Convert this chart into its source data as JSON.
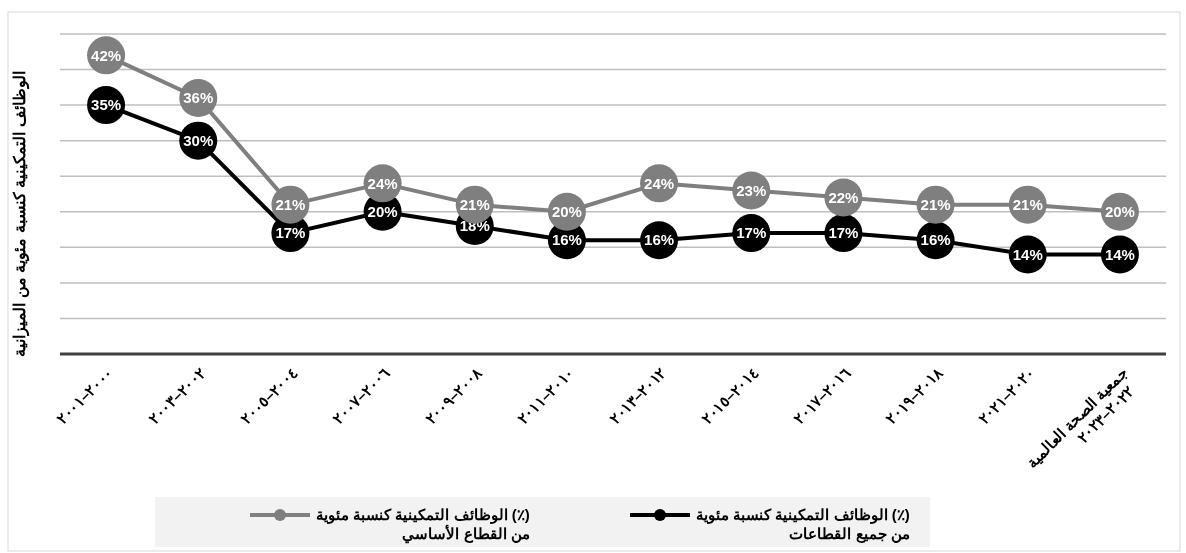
{
  "chart_data": {
    "type": "line",
    "ylabel": "الوظائف التمكينية كنسبة مئوية من الميزانية",
    "categories": [
      "٢٠٠٠–٢٠٠١",
      "٢٠٠٢–٢٠٠٣",
      "٢٠٠٤–٢٠٠٥",
      "٢٠٠٦–٢٠٠٧",
      "٢٠٠٨–٢٠٠٩",
      "٢٠١٠–٢٠١١",
      "٢٠١٢–٢٠١٣",
      "٢٠١٤–٢٠١٥",
      "٢٠١٦–٢٠١٧",
      "٢٠١٨–٢٠١٩",
      "٢٠٢٠–٢٠٢١",
      "جمعية الصحة العالمية ٢٠٢٢–٢٠٢٣"
    ],
    "series": [
      {
        "name": "الوظائف التمكينية كنسبة مئوية (٪) من القطاع الأساسي",
        "color": "#7f7f7f",
        "values": [
          42,
          36,
          21,
          24,
          21,
          20,
          24,
          23,
          22,
          21,
          21,
          20
        ],
        "value_labels": [
          "42%",
          "36%",
          "21%",
          "24%",
          "21%",
          "20%",
          "24%",
          "23%",
          "22%",
          "21%",
          "21%",
          "20%"
        ]
      },
      {
        "name": "الوظائف التمكينية كنسبة مئوية (٪) من جميع القطاعات",
        "color": "#000000",
        "values": [
          35,
          30,
          17,
          20,
          18,
          16,
          16,
          17,
          17,
          16,
          14,
          14
        ],
        "value_labels": [
          "35%",
          "30%",
          "17%",
          "20%",
          "18%",
          "16%",
          "16%",
          "17%",
          "17%",
          "16%",
          "14%",
          "14%"
        ]
      }
    ],
    "ylim": [
      0,
      45
    ],
    "yticks": [
      {
        "value": 0,
        "label": null
      },
      {
        "value": 5,
        "label": null
      },
      {
        "value": 10,
        "label": null
      },
      {
        "value": 15,
        "label": null
      },
      {
        "value": 20,
        "label": null
      },
      {
        "value": 25,
        "label": null
      },
      {
        "value": 30,
        "label": null
      },
      {
        "value": 35,
        "label": null
      },
      {
        "value": 40,
        "label": null
      },
      {
        "value": 45,
        "label": null
      }
    ],
    "tick_labels": "x",
    "grid": "y",
    "legend": "bottom",
    "marker": "circle",
    "line_style": "solid"
  }
}
